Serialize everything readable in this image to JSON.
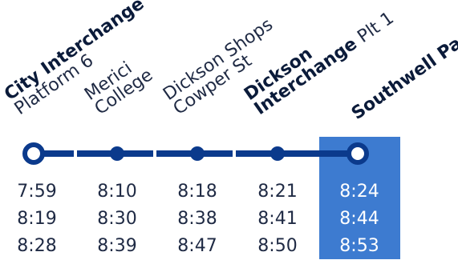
{
  "stops": [
    {
      "line1": "City Interchange",
      "line2": "Platform 6",
      "emphasis": "first"
    },
    {
      "line1": "Merici",
      "line2": "College",
      "emphasis": "none"
    },
    {
      "line1": "Dickson Shops",
      "line2": "Cowper St",
      "emphasis": "none"
    },
    {
      "line1": "Dickson",
      "line2": "Interchange Plt 1",
      "emphasis": "partial"
    },
    {
      "line1": "Southwell Park",
      "line2": "",
      "emphasis": "bold"
    }
  ],
  "times": [
    [
      "7:59",
      "8:10",
      "8:18",
      "8:21",
      "8:24"
    ],
    [
      "8:19",
      "8:30",
      "8:38",
      "8:41",
      "8:44"
    ],
    [
      "8:28",
      "8:39",
      "8:47",
      "8:50",
      "8:53"
    ]
  ],
  "colors": {
    "route_line": "#0b3a8c",
    "highlight": "#3d7bd0",
    "text": "#1f2a44"
  },
  "highlighted_stop_index": 4
}
